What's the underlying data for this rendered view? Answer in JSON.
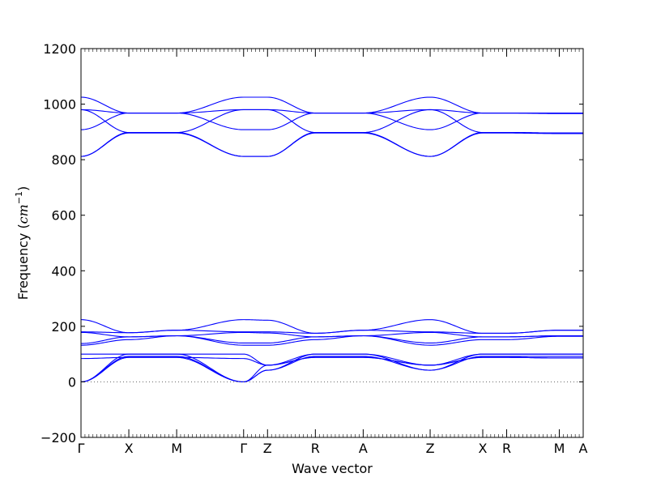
{
  "chart_data": {
    "type": "line",
    "title": "",
    "xlabel": "Wave vector",
    "ylabel": "Frequency (cm⁻¹)",
    "ylabel_parts": {
      "main": "Frequency (",
      "var": "cm",
      "sup": "−1",
      "close": ")"
    },
    "ylim": [
      -200,
      1200
    ],
    "yticks": [
      -200,
      0,
      200,
      400,
      600,
      800,
      1000,
      1200
    ],
    "grid": false,
    "zero_line": {
      "y": 0,
      "style": "dotted",
      "color": "#555555"
    },
    "band_color": "#0000ff",
    "x_ticks": [
      {
        "label": "Γ",
        "x": 0.0
      },
      {
        "label": "X",
        "x": 0.5
      },
      {
        "label": "M",
        "x": 1.0
      },
      {
        "label": "Γ",
        "x": 1.7
      },
      {
        "label": "Z",
        "x": 1.95
      },
      {
        "label": "R",
        "x": 2.45
      },
      {
        "label": "A",
        "x": 2.95
      },
      {
        "label": "Z",
        "x": 3.65
      },
      {
        "label": "X",
        "x": 4.2
      },
      {
        "label": "R",
        "x": 4.45
      },
      {
        "label": "M",
        "x": 5.0
      },
      {
        "label": "A",
        "x": 5.25
      }
    ],
    "series": [
      {
        "x": [
          0,
          0.5,
          1.0,
          1.7,
          1.95,
          2.45,
          2.95,
          3.65,
          4.2,
          4.45,
          5.0,
          5.25
        ],
        "values": [
          1025,
          968,
          968,
          1025,
          1025,
          968,
          968,
          1025,
          968,
          968,
          968,
          968
        ]
      },
      {
        "x": [
          0,
          0.5,
          1.0,
          1.7,
          1.95,
          2.45,
          2.95,
          3.65,
          4.2,
          4.45,
          5.0,
          5.25
        ],
        "values": [
          980,
          968,
          968,
          980,
          980,
          968,
          968,
          980,
          968,
          968,
          968,
          968
        ]
      },
      {
        "x": [
          0,
          0.5,
          1.0,
          1.7,
          1.95,
          2.45,
          2.95,
          3.65,
          4.2,
          4.45,
          5.0,
          5.25
        ],
        "values": [
          980,
          898,
          898,
          980,
          980,
          898,
          898,
          980,
          898,
          898,
          896,
          896
        ]
      },
      {
        "x": [
          0,
          0.5,
          1.0,
          1.7,
          1.95,
          2.45,
          2.95,
          3.65,
          4.2,
          4.45,
          5.0,
          5.25
        ],
        "values": [
          908,
          968,
          968,
          908,
          908,
          968,
          968,
          908,
          968,
          968,
          966,
          966
        ]
      },
      {
        "x": [
          0,
          0.5,
          1.0,
          1.7,
          1.95,
          2.45,
          2.95,
          3.65,
          4.2,
          4.45,
          5.0,
          5.25
        ],
        "values": [
          812,
          896,
          896,
          812,
          812,
          896,
          896,
          812,
          896,
          896,
          894,
          894
        ]
      },
      {
        "x": [
          0,
          0.5,
          1.0,
          1.7,
          1.95,
          2.45,
          2.95,
          3.65,
          4.2,
          4.45,
          5.0,
          5.25
        ],
        "values": [
          812,
          898,
          898,
          812,
          812,
          898,
          898,
          812,
          898,
          898,
          896,
          896
        ]
      },
      {
        "x": [
          0,
          0.5,
          1.0,
          1.7,
          1.95,
          2.45,
          2.95,
          3.65,
          4.2,
          4.45,
          5.0,
          5.25
        ],
        "values": [
          224,
          177,
          186,
          224,
          222,
          175,
          186,
          224,
          175,
          175,
          186,
          186
        ]
      },
      {
        "x": [
          0,
          0.5,
          1.0,
          1.7,
          1.95,
          2.45,
          2.95,
          3.65,
          4.2,
          4.45,
          5.0,
          5.25
        ],
        "values": [
          180,
          177,
          186,
          180,
          180,
          175,
          186,
          180,
          175,
          175,
          186,
          186
        ]
      },
      {
        "x": [
          0,
          0.5,
          1.0,
          1.7,
          1.95,
          2.45,
          2.95,
          3.65,
          4.2,
          4.45,
          5.0,
          5.25
        ],
        "values": [
          178,
          162,
          166,
          178,
          176,
          162,
          166,
          178,
          162,
          162,
          166,
          166
        ]
      },
      {
        "x": [
          0,
          0.5,
          1.0,
          1.7,
          1.95,
          2.45,
          2.95,
          3.65,
          4.2,
          4.45,
          5.0,
          5.25
        ],
        "values": [
          138,
          162,
          166,
          140,
          140,
          162,
          166,
          140,
          162,
          162,
          166,
          166
        ]
      },
      {
        "x": [
          0,
          0.5,
          1.0,
          1.7,
          1.95,
          2.45,
          2.95,
          3.65,
          4.2,
          4.45,
          5.0,
          5.25
        ],
        "values": [
          132,
          152,
          166,
          132,
          132,
          152,
          166,
          132,
          152,
          152,
          164,
          164
        ]
      },
      {
        "x": [
          0,
          0.5,
          1.0,
          1.7,
          1.95,
          2.45,
          2.95,
          3.65,
          4.2,
          4.45,
          5.0,
          5.25
        ],
        "values": [
          100,
          100,
          100,
          100,
          60,
          100,
          100,
          60,
          100,
          100,
          100,
          100
        ]
      },
      {
        "x": [
          0,
          0.5,
          1.0,
          1.7,
          1.95,
          2.45,
          2.95,
          3.65,
          4.2,
          4.45,
          5.0,
          5.25
        ],
        "values": [
          84,
          88,
          88,
          84,
          60,
          88,
          88,
          60,
          88,
          88,
          86,
          86
        ]
      },
      {
        "x": [
          0,
          0.5,
          1.0,
          1.7,
          1.95,
          2.45,
          2.95,
          3.65,
          4.2,
          4.45,
          5.0,
          5.25
        ],
        "values": [
          0,
          100,
          100,
          0,
          42,
          100,
          100,
          42,
          100,
          100,
          100,
          100
        ]
      },
      {
        "x": [
          0,
          0.5,
          1.0,
          1.7,
          1.95,
          2.45,
          2.95,
          3.65,
          4.2,
          4.45,
          5.0,
          5.25
        ],
        "values": [
          0,
          92,
          92,
          0,
          42,
          92,
          92,
          42,
          92,
          92,
          92,
          92
        ]
      },
      {
        "x": [
          0,
          0.5,
          1.0,
          1.7,
          1.95,
          2.45,
          2.95,
          3.65,
          4.2,
          4.45,
          5.0,
          5.25
        ],
        "values": [
          0,
          88,
          88,
          0,
          60,
          88,
          88,
          60,
          88,
          88,
          86,
          86
        ]
      }
    ]
  }
}
